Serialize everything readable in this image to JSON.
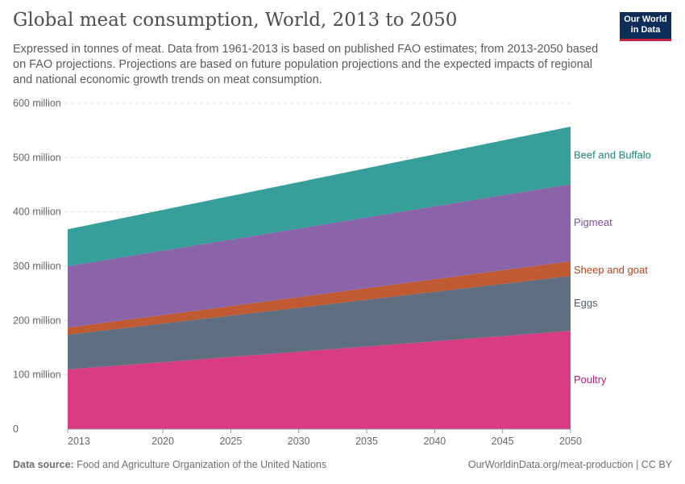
{
  "header": {
    "title": "Global meat consumption, World, 2013 to 2050",
    "subtitle": "Expressed in tonnes of meat. Data from 1961-2013 is based on published FAO estimates; from 2013-2050 based on FAO projections. Projections are based on future population projections and the expected impacts of regional and national economic growth trends on meat consumption.",
    "logo": "Our World in Data"
  },
  "footer": {
    "source_label": "Data source:",
    "source": "Food and Agriculture Organization of the United Nations",
    "url": "OurWorldinData.org/meat-production | CC BY"
  },
  "chart_data": {
    "type": "area",
    "stacked": true,
    "x": [
      2013,
      2050
    ],
    "xticks": [
      "2013",
      "2020",
      "2025",
      "2030",
      "2035",
      "2040",
      "2045",
      "2050"
    ],
    "ylim": [
      0,
      600000000
    ],
    "yticks": [
      "0",
      "100 million",
      "200 million",
      "300 million",
      "400 million",
      "500 million",
      "600 million"
    ],
    "grid": true,
    "legend": "right",
    "series": [
      {
        "name": "Poultry",
        "values": [
          110000000,
          181000000
        ],
        "color": "#d73c85"
      },
      {
        "name": "Eggs",
        "values": [
          64000000,
          101000000
        ],
        "color": "#5f6e80"
      },
      {
        "name": "Sheep and goat",
        "values": [
          13000000,
          27000000
        ],
        "color": "#c05a33"
      },
      {
        "name": "Pigmeat",
        "values": [
          113000000,
          142000000
        ],
        "color": "#8a63a8"
      },
      {
        "name": "Beef and Buffalo",
        "values": [
          68000000,
          106000000
        ],
        "color": "#369f99"
      }
    ],
    "label_colors": {
      "Poultry": "#c8186e",
      "Eggs": "#4e5e72",
      "Sheep and goat": "#b4441a",
      "Pigmeat": "#7d4e9e",
      "Beef and Buffalo": "#16877e"
    }
  }
}
